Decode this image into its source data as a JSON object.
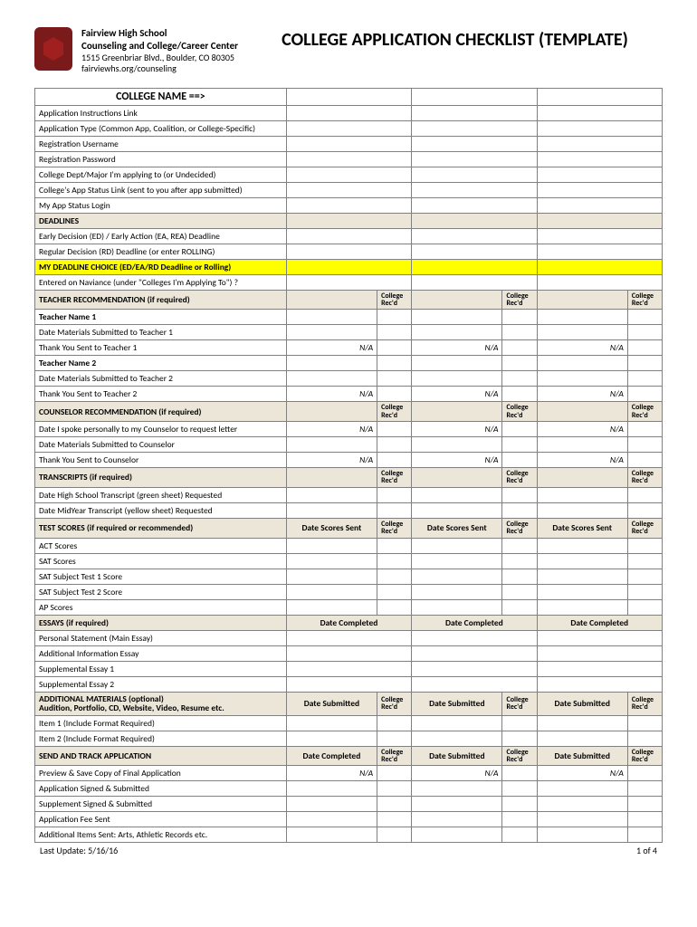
{
  "header": {
    "school_name": "Fairview High School",
    "dept": "Counseling and College/Career Center",
    "address": "1515 Greenbriar Blvd., Boulder, CO 80305",
    "url": "fairviewhs.org/counseling",
    "title": "COLLEGE APPLICATION CHECKLIST (TEMPLATE)"
  },
  "labels": {
    "college_name": "COLLEGE NAME ==>",
    "app_instr_link": "Application Instructions Link",
    "app_type": "Application Type (Common App, Coalition, or College-Specific)",
    "reg_user": "Registration Username",
    "reg_pass": "Registration Password",
    "major": "College Dept/Major I'm applying to (or Undecided)",
    "status_link": "College's App Status Link (sent to you after app submitted)",
    "status_login": "My App Status Login",
    "deadlines": "DEADLINES",
    "ed_ea": "Early Decision (ED) / Early Action (EA, REA) Deadline",
    "rd": "Regular Decision (RD) Deadline (or enter ROLLING)",
    "my_deadline": "MY DEADLINE CHOICE (ED/EA/RD Deadline or Rolling)",
    "naviance": "Entered on Naviance (under \"Colleges I'm Applying To\") ?",
    "teacher_rec": "TEACHER RECOMMENDATION (if required)",
    "teacher1": "Teacher Name 1",
    "date_mat_t1": "Date Materials Submitted to Teacher 1",
    "thanks_t1": "Thank You Sent to Teacher 1",
    "teacher2": "Teacher Name 2",
    "date_mat_t2": "Date Materials Submitted to Teacher 2",
    "thanks_t2": "Thank You Sent to Teacher 2",
    "counselor_rec": "COUNSELOR RECOMMENDATION (if required)",
    "date_spoke": "Date I spoke personally to my Counselor to request letter",
    "date_mat_c": "Date Materials Submitted to Counselor",
    "thanks_c": "Thank You Sent to Counselor",
    "transcripts": "TRANSCRIPTS (if required)",
    "hs_transcript": "Date High School Transcript (green sheet) Requested",
    "midyear": "Date MidYear Transcript (yellow sheet) Requested",
    "test_scores": "TEST SCORES (if required or recommended)",
    "act": "ACT Scores",
    "sat": "SAT Scores",
    "sat_sub1": "SAT Subject Test 1 Score",
    "sat_sub2": "SAT Subject Test 2 Score",
    "ap": "AP Scores",
    "essays": "ESSAYS (if required)",
    "personal_stmt": "Personal Statement (Main Essay)",
    "addl_info": "Additional Information Essay",
    "supp1": "Supplemental Essay 1",
    "supp2": "Supplemental Essay 2",
    "addl_mat_1": "ADDITIONAL MATERIALS (optional)",
    "addl_mat_2": "Audition, Portfolio, CD, Website, Video, Resume etc.",
    "item1": "Item 1 (Include Format Required)",
    "item2": "Item 2 (Include Format Required)",
    "send_track": "SEND AND TRACK APPLICATION",
    "preview": "Preview & Save Copy of Final Application",
    "signed": "Application Signed & Submitted",
    "supp_signed": "Supplement Signed & Submitted",
    "fee": "Application Fee Sent",
    "addl_items": "Additional Items Sent: Arts, Athletic Records etc."
  },
  "coltext": {
    "college_recd": "College Rec'd",
    "date_scores": "Date Scores Sent",
    "date_completed": "Date Completed",
    "date_submitted": "Date Submitted",
    "na": "N/A"
  },
  "footer": {
    "last_update": "Last Update:  5/16/16",
    "page": "1 of 4"
  },
  "style": {
    "section_bg": "#ece6d9",
    "highlight_bg": "#ffff00",
    "border_color": "#808080",
    "outer_border": "#000000",
    "page_bg": "#ffffff"
  }
}
